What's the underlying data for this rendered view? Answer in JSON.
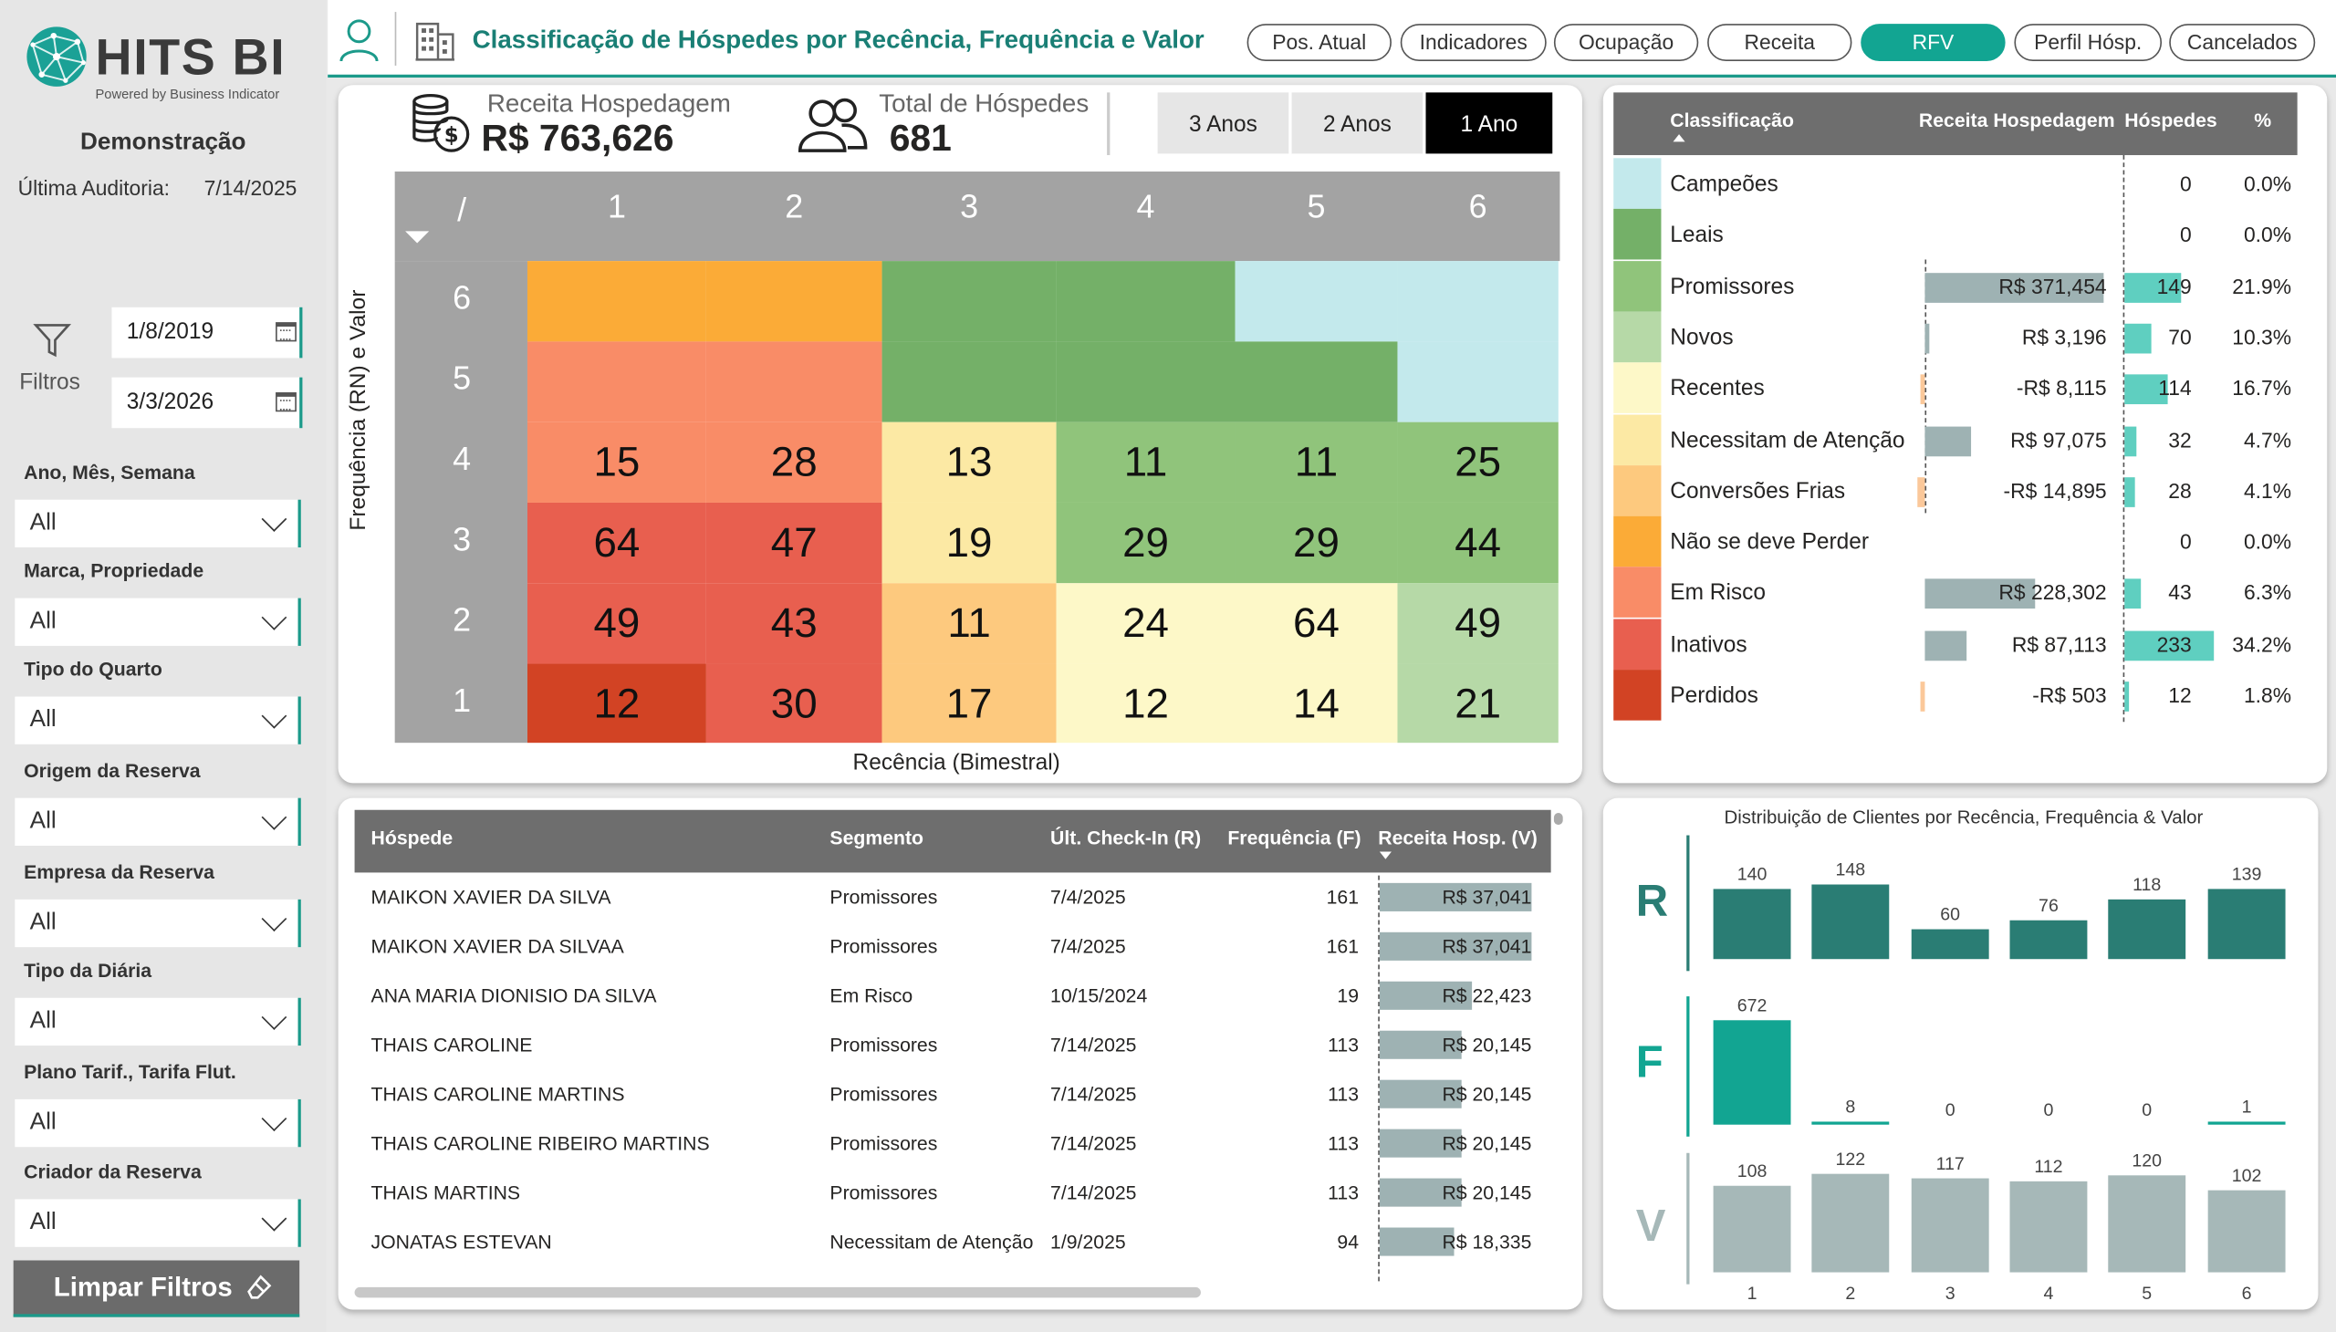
{
  "brand": {
    "name": "HITS BI",
    "tagline": "Powered by Business Indicator"
  },
  "sidebar": {
    "company": "Demonstração",
    "audit_label": "Última Auditoria:",
    "audit_date": "7/14/2025",
    "filters_label": "Filtros",
    "date_from": "1/8/2019",
    "date_to": "3/3/2026",
    "slicers": [
      {
        "label": "Ano, Mês, Semana",
        "value": "All"
      },
      {
        "label": "Marca, Propriedade",
        "value": "All"
      },
      {
        "label": "Tipo do Quarto",
        "value": "All"
      },
      {
        "label": "Origem da Reserva",
        "value": "All"
      },
      {
        "label": "Empresa da Reserva",
        "value": "All"
      },
      {
        "label": "Tipo da Diária",
        "value": "All"
      },
      {
        "label": "Plano Tarif., Tarifa Flut.",
        "value": "All"
      },
      {
        "label": "Criador da Reserva",
        "value": "All"
      }
    ],
    "clear_label": "Limpar Filtros"
  },
  "header": {
    "title": "Classificação de Hóspedes por Recência, Frequência e Valor",
    "nav": [
      "Pos. Atual",
      "Indicadores",
      "Ocupação",
      "Receita",
      "RFV",
      "Perfil Hósp.",
      "Cancelados"
    ],
    "active_nav": "RFV"
  },
  "kpis": {
    "revenue_label": "Receita Hospedagem",
    "revenue_value": "R$ 763,626",
    "guests_label": "Total de Hóspedes",
    "guests_value": "681"
  },
  "periods": [
    "3 Anos",
    "2 Anos",
    "1 Ano"
  ],
  "selected_period": "1 Ano",
  "matrix": {
    "corner": "/",
    "x_labels": [
      "1",
      "2",
      "3",
      "4",
      "5",
      "6"
    ],
    "y_labels": [
      "6",
      "5",
      "4",
      "3",
      "2",
      "1"
    ],
    "y_axis_title": "Frequência (RN) e Valor",
    "x_axis_title": "Recência (Bimestral)",
    "rows": [
      [
        "",
        "",
        "",
        "",
        "",
        ""
      ],
      [
        "",
        "",
        "",
        "",
        "",
        ""
      ],
      [
        "15",
        "28",
        "13",
        "11",
        "11",
        "25"
      ],
      [
        "64",
        "47",
        "19",
        "29",
        "29",
        "44"
      ],
      [
        "49",
        "43",
        "11",
        "24",
        "64",
        "49"
      ],
      [
        "12",
        "30",
        "17",
        "12",
        "14",
        "21"
      ]
    ]
  },
  "classification": {
    "headers": {
      "class": "Classificação",
      "revenue": "Receita Hospedagem",
      "guests": "Hóspedes",
      "pct": "%"
    },
    "rows": [
      {
        "name": "Campeões",
        "color": "#c3e9ec",
        "revenue": "",
        "revenue_num": 0,
        "guests": "0",
        "guests_num": 0,
        "pct": "0.0%"
      },
      {
        "name": "Leais",
        "color": "#74b068",
        "revenue": "",
        "revenue_num": 0,
        "guests": "0",
        "guests_num": 0,
        "pct": "0.0%"
      },
      {
        "name": "Promissores",
        "color": "#90c47b",
        "revenue": "R$ 371,454",
        "revenue_num": 371454,
        "guests": "149",
        "guests_num": 149,
        "pct": "21.9%"
      },
      {
        "name": "Novos",
        "color": "#b6d9a7",
        "revenue": "R$ 3,196",
        "revenue_num": 3196,
        "guests": "70",
        "guests_num": 70,
        "pct": "10.3%"
      },
      {
        "name": "Recentes",
        "color": "#fdf8c8",
        "revenue": "-R$ 8,115",
        "revenue_num": -8115,
        "guests": "114",
        "guests_num": 114,
        "pct": "16.7%"
      },
      {
        "name": "Necessitam de Atenção",
        "color": "#fce9a4",
        "revenue": "R$ 97,075",
        "revenue_num": 97075,
        "guests": "32",
        "guests_num": 32,
        "pct": "4.7%"
      },
      {
        "name": "Conversões Frias",
        "color": "#fdc97e",
        "revenue": "-R$ 14,895",
        "revenue_num": -14895,
        "guests": "28",
        "guests_num": 28,
        "pct": "4.1%"
      },
      {
        "name": "Não se deve Perder",
        "color": "#fbab37",
        "revenue": "",
        "revenue_num": 0,
        "guests": "0",
        "guests_num": 0,
        "pct": "0.0%"
      },
      {
        "name": "Em Risco",
        "color": "#f98c67",
        "revenue": "R$ 228,302",
        "revenue_num": 228302,
        "guests": "43",
        "guests_num": 43,
        "pct": "6.3%"
      },
      {
        "name": "Inativos",
        "color": "#e85f4f",
        "revenue": "R$ 87,113",
        "revenue_num": 87113,
        "guests": "233",
        "guests_num": 233,
        "pct": "34.2%"
      },
      {
        "name": "Perdidos",
        "color": "#d24324",
        "revenue": "-R$ 503",
        "revenue_num": -503,
        "guests": "12",
        "guests_num": 12,
        "pct": "1.8%"
      }
    ]
  },
  "guests_table": {
    "headers": {
      "name": "Hóspede",
      "segment": "Segmento",
      "checkin": "Últ. Check-In (R)",
      "freq": "Frequência (F)",
      "revenue": "Receita Hosp. (V)"
    },
    "rows": [
      {
        "name": "MAIKON XAVIER DA SILVA",
        "segment": "Promissores",
        "checkin": "7/4/2025",
        "freq": "161",
        "revenue": "R$ 37,041",
        "revenue_num": 37041
      },
      {
        "name": "MAIKON XAVIER DA SILVAA",
        "segment": "Promissores",
        "checkin": "7/4/2025",
        "freq": "161",
        "revenue": "R$ 37,041",
        "revenue_num": 37041
      },
      {
        "name": "ANA MARIA DIONISIO DA SILVA",
        "segment": "Em Risco",
        "checkin": "10/15/2024",
        "freq": "19",
        "revenue": "R$ 22,423",
        "revenue_num": 22423
      },
      {
        "name": "THAIS  CAROLINE",
        "segment": "Promissores",
        "checkin": "7/14/2025",
        "freq": "113",
        "revenue": "R$ 20,145",
        "revenue_num": 20145
      },
      {
        "name": "THAIS  CAROLINE  MARTINS",
        "segment": "Promissores",
        "checkin": "7/14/2025",
        "freq": "113",
        "revenue": "R$ 20,145",
        "revenue_num": 20145
      },
      {
        "name": "THAIS CAROLINE RIBEIRO MARTINS",
        "segment": "Promissores",
        "checkin": "7/14/2025",
        "freq": "113",
        "revenue": "R$ 20,145",
        "revenue_num": 20145
      },
      {
        "name": "THAIS MARTINS",
        "segment": "Promissores",
        "checkin": "7/14/2025",
        "freq": "113",
        "revenue": "R$ 20,145",
        "revenue_num": 20145
      },
      {
        "name": "JONATAS ESTEVAN",
        "segment": "Necessitam de Atenção",
        "checkin": "1/9/2025",
        "freq": "94",
        "revenue": "R$ 18,335",
        "revenue_num": 18335
      }
    ]
  },
  "chart_data": {
    "type": "bar",
    "title": "Distribuição de Clientes por Recência, Frequência & Valor",
    "categories": [
      "1",
      "2",
      "3",
      "4",
      "5",
      "6"
    ],
    "series": [
      {
        "name": "R",
        "values": [
          140,
          148,
          60,
          76,
          118,
          139
        ],
        "color": "#2a7d74"
      },
      {
        "name": "F",
        "values": [
          672,
          8,
          0,
          0,
          0,
          1
        ],
        "color": "#12a592"
      },
      {
        "name": "V",
        "values": [
          108,
          122,
          117,
          112,
          120,
          102
        ],
        "color": "#a6b8b8"
      }
    ],
    "grid": false,
    "legend": "none"
  }
}
